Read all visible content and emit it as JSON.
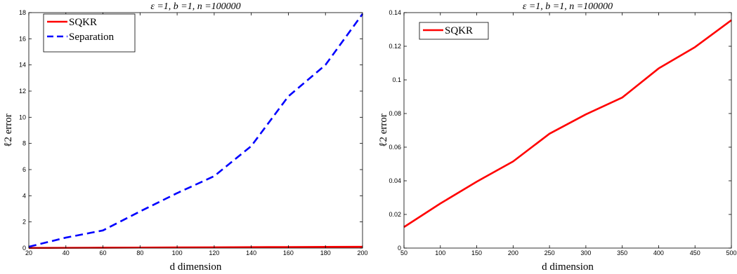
{
  "chart_data": [
    {
      "type": "line",
      "title": "ε =1, b =1, n =100000",
      "xlabel": "d dimension",
      "ylabel": "ℓ2 error",
      "xlim": [
        20,
        200
      ],
      "ylim": [
        0,
        18
      ],
      "xticks": [
        20,
        40,
        60,
        80,
        100,
        120,
        140,
        160,
        180,
        200
      ],
      "yticks": [
        0,
        2,
        4,
        6,
        8,
        10,
        12,
        14,
        16,
        18
      ],
      "legend_position": "top-left",
      "series": [
        {
          "name": "SQKR",
          "color": "#ff0000",
          "style": "solid",
          "x": [
            20,
            40,
            60,
            80,
            100,
            120,
            140,
            160,
            180,
            200
          ],
          "y": [
            0.01,
            0.02,
            0.03,
            0.04,
            0.05,
            0.06,
            0.07,
            0.08,
            0.09,
            0.1
          ]
        },
        {
          "name": "Separation",
          "color": "#0000ff",
          "style": "dashed",
          "x": [
            20,
            40,
            60,
            80,
            100,
            120,
            140,
            160,
            180,
            200
          ],
          "y": [
            0.1,
            0.8,
            1.35,
            2.8,
            4.2,
            5.5,
            7.8,
            11.6,
            14.0,
            17.9
          ]
        }
      ]
    },
    {
      "type": "line",
      "title": "ε =1, b =1, n =100000",
      "xlabel": "d dimension",
      "ylabel": "ℓ2 error",
      "xlim": [
        50,
        500
      ],
      "ylim": [
        0,
        0.14
      ],
      "xticks": [
        50,
        100,
        150,
        200,
        250,
        300,
        350,
        400,
        450,
        500
      ],
      "yticks": [
        0,
        0.02,
        0.04,
        0.06,
        0.08,
        0.1,
        0.12,
        0.14
      ],
      "legend_position": "top-left",
      "series": [
        {
          "name": "SQKR",
          "color": "#ff0000",
          "style": "solid",
          "x": [
            50,
            100,
            150,
            200,
            250,
            300,
            350,
            400,
            450,
            500
          ],
          "y": [
            0.0125,
            0.0265,
            0.0395,
            0.0515,
            0.068,
            0.0795,
            0.0895,
            0.1068,
            0.1195,
            0.1355
          ]
        }
      ]
    }
  ]
}
